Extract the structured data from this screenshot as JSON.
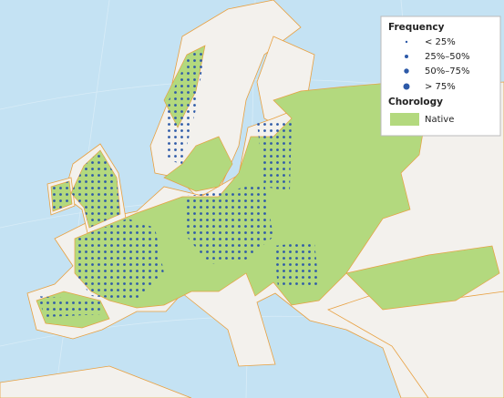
{
  "legend": {
    "frequency_title": "Frequency",
    "frequency_classes": [
      "< 25%",
      "25%–50%",
      "50%–75%",
      "> 75%"
    ],
    "chorology_title": "Chorology",
    "chorology_classes": [
      "Native"
    ]
  }
}
